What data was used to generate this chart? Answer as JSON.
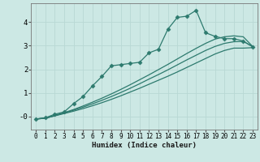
{
  "xlabel": "Humidex (Indice chaleur)",
  "bg_color": "#cce8e4",
  "grid_color": "#b8d8d4",
  "line_color": "#2d7a6e",
  "x_ticks": [
    0,
    1,
    2,
    3,
    4,
    5,
    6,
    7,
    8,
    9,
    10,
    11,
    12,
    13,
    14,
    15,
    16,
    17,
    18,
    19,
    20,
    21,
    22,
    23
  ],
  "y_ticks": [
    0,
    1,
    2,
    3,
    4
  ],
  "y_tick_labels": [
    "-0",
    "1",
    "2",
    "3",
    "4"
  ],
  "xlim": [
    -0.5,
    23.5
  ],
  "ylim": [
    -0.55,
    4.8
  ],
  "lines": [
    {
      "x": [
        0,
        1,
        2,
        3,
        4,
        5,
        6,
        7,
        8,
        9,
        10,
        11,
        12,
        13,
        14,
        15,
        16,
        17,
        18,
        19,
        20,
        21,
        22,
        23
      ],
      "y": [
        -0.1,
        -0.05,
        0.1,
        0.2,
        0.55,
        0.85,
        1.3,
        1.7,
        2.15,
        2.2,
        2.25,
        2.3,
        2.7,
        2.85,
        3.7,
        4.2,
        4.25,
        4.5,
        3.55,
        3.4,
        3.3,
        3.3,
        3.2,
        2.95
      ],
      "marker": "D",
      "markersize": 2.5,
      "lw": 0.9
    },
    {
      "x": [
        0,
        1,
        2,
        3,
        4,
        5,
        6,
        7,
        8,
        9,
        10,
        11,
        12,
        13,
        14,
        15,
        16,
        17,
        18,
        19,
        20,
        21,
        22,
        23
      ],
      "y": [
        -0.1,
        -0.07,
        0.03,
        0.13,
        0.23,
        0.34,
        0.46,
        0.59,
        0.73,
        0.88,
        1.04,
        1.2,
        1.37,
        1.54,
        1.71,
        1.89,
        2.08,
        2.27,
        2.46,
        2.65,
        2.8,
        2.9,
        2.9,
        2.92
      ],
      "marker": null,
      "markersize": 0,
      "lw": 0.9
    },
    {
      "x": [
        0,
        1,
        2,
        3,
        4,
        5,
        6,
        7,
        8,
        9,
        10,
        11,
        12,
        13,
        14,
        15,
        16,
        17,
        18,
        19,
        20,
        21,
        22,
        23
      ],
      "y": [
        -0.1,
        -0.07,
        0.04,
        0.15,
        0.27,
        0.4,
        0.54,
        0.69,
        0.85,
        1.02,
        1.2,
        1.39,
        1.59,
        1.78,
        1.98,
        2.19,
        2.4,
        2.6,
        2.8,
        2.97,
        3.1,
        3.17,
        3.18,
        2.97
      ],
      "marker": null,
      "markersize": 0,
      "lw": 0.9
    },
    {
      "x": [
        0,
        1,
        2,
        3,
        4,
        5,
        6,
        7,
        8,
        9,
        10,
        11,
        12,
        13,
        14,
        15,
        16,
        17,
        18,
        19,
        20,
        21,
        22,
        23
      ],
      "y": [
        -0.1,
        -0.07,
        0.05,
        0.17,
        0.3,
        0.45,
        0.61,
        0.78,
        0.96,
        1.15,
        1.35,
        1.56,
        1.77,
        1.99,
        2.21,
        2.44,
        2.67,
        2.89,
        3.1,
        3.28,
        3.38,
        3.42,
        3.38,
        2.97
      ],
      "marker": null,
      "markersize": 0,
      "lw": 0.9
    }
  ]
}
